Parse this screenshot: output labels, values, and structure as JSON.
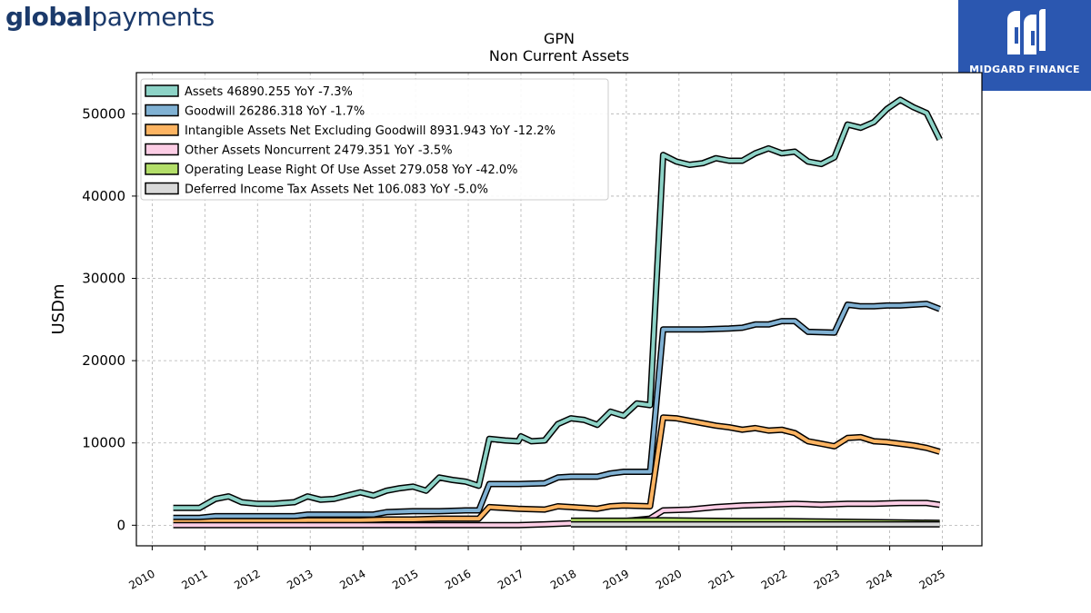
{
  "header": {
    "brand_bold": "global",
    "brand_regular": "payments",
    "partner_logo_text": "MIDGARD FINANCE"
  },
  "chart_data": {
    "type": "line",
    "title": "GPN",
    "subtitle": "Non Current  Assets",
    "ylabel": "USDm",
    "xlabel": "",
    "ylim": [
      -2500,
      55000
    ],
    "xlim": [
      2009.7,
      2025.75
    ],
    "yticks": [
      0,
      10000,
      20000,
      30000,
      40000,
      50000
    ],
    "xticks": [
      2010,
      2011,
      2012,
      2013,
      2014,
      2015,
      2016,
      2017,
      2018,
      2019,
      2020,
      2021,
      2022,
      2023,
      2024,
      2025
    ],
    "grid": true,
    "legend_position": "top-left",
    "series": [
      {
        "name": "Assets",
        "legend_label": "Assets  46890.255 YoY -7.3%",
        "color": "#8dd3c7",
        "points": [
          [
            2010.4,
            2100
          ],
          [
            2010.6,
            2100
          ],
          [
            2010.9,
            2100
          ],
          [
            2011.2,
            3200
          ],
          [
            2011.45,
            3500
          ],
          [
            2011.7,
            2800
          ],
          [
            2012.0,
            2600
          ],
          [
            2012.3,
            2600
          ],
          [
            2012.7,
            2800
          ],
          [
            2012.95,
            3500
          ],
          [
            2013.2,
            3100
          ],
          [
            2013.45,
            3200
          ],
          [
            2013.7,
            3600
          ],
          [
            2013.95,
            4000
          ],
          [
            2014.2,
            3600
          ],
          [
            2014.45,
            4200
          ],
          [
            2014.7,
            4500
          ],
          [
            2014.95,
            4700
          ],
          [
            2015.2,
            4200
          ],
          [
            2015.45,
            5800
          ],
          [
            2015.7,
            5500
          ],
          [
            2015.95,
            5300
          ],
          [
            2016.2,
            4800
          ],
          [
            2016.4,
            10500
          ],
          [
            2016.7,
            10300
          ],
          [
            2016.95,
            10200
          ],
          [
            2017.0,
            10800
          ],
          [
            2017.2,
            10200
          ],
          [
            2017.45,
            10300
          ],
          [
            2017.7,
            12300
          ],
          [
            2017.95,
            13000
          ],
          [
            2018.2,
            12800
          ],
          [
            2018.45,
            12200
          ],
          [
            2018.7,
            13800
          ],
          [
            2018.95,
            13300
          ],
          [
            2019.2,
            14800
          ],
          [
            2019.45,
            14600
          ],
          [
            2019.7,
            45000
          ],
          [
            2019.95,
            44200
          ],
          [
            2020.2,
            43800
          ],
          [
            2020.45,
            44000
          ],
          [
            2020.7,
            44600
          ],
          [
            2020.95,
            44300
          ],
          [
            2021.2,
            44300
          ],
          [
            2021.45,
            45200
          ],
          [
            2021.7,
            45800
          ],
          [
            2021.95,
            45200
          ],
          [
            2022.2,
            45400
          ],
          [
            2022.45,
            44200
          ],
          [
            2022.7,
            43900
          ],
          [
            2022.95,
            44700
          ],
          [
            2023.2,
            48700
          ],
          [
            2023.45,
            48300
          ],
          [
            2023.7,
            49000
          ],
          [
            2023.95,
            50600
          ],
          [
            2024.2,
            51700
          ],
          [
            2024.45,
            50800
          ],
          [
            2024.7,
            50100
          ],
          [
            2024.95,
            46890
          ]
        ]
      },
      {
        "name": "Goodwill",
        "legend_label": "Goodwill  26286.318 YoY -1.7%",
        "color": "#80b1d3",
        "points": [
          [
            2010.4,
            900
          ],
          [
            2010.9,
            900
          ],
          [
            2011.2,
            1100
          ],
          [
            2011.7,
            1100
          ],
          [
            2012.2,
            1100
          ],
          [
            2012.7,
            1100
          ],
          [
            2012.95,
            1300
          ],
          [
            2013.45,
            1300
          ],
          [
            2013.95,
            1300
          ],
          [
            2014.2,
            1300
          ],
          [
            2014.45,
            1600
          ],
          [
            2014.95,
            1700
          ],
          [
            2015.45,
            1700
          ],
          [
            2015.95,
            1800
          ],
          [
            2016.2,
            1800
          ],
          [
            2016.4,
            5000
          ],
          [
            2016.95,
            5000
          ],
          [
            2017.45,
            5100
          ],
          [
            2017.7,
            5800
          ],
          [
            2017.95,
            5900
          ],
          [
            2018.45,
            5900
          ],
          [
            2018.7,
            6300
          ],
          [
            2018.95,
            6500
          ],
          [
            2019.45,
            6500
          ],
          [
            2019.7,
            23800
          ],
          [
            2019.95,
            23800
          ],
          [
            2020.45,
            23800
          ],
          [
            2020.95,
            23900
          ],
          [
            2021.2,
            24000
          ],
          [
            2021.45,
            24400
          ],
          [
            2021.7,
            24400
          ],
          [
            2021.95,
            24800
          ],
          [
            2022.2,
            24800
          ],
          [
            2022.45,
            23500
          ],
          [
            2022.95,
            23400
          ],
          [
            2023.2,
            26800
          ],
          [
            2023.45,
            26600
          ],
          [
            2023.7,
            26600
          ],
          [
            2023.95,
            26700
          ],
          [
            2024.2,
            26700
          ],
          [
            2024.45,
            26800
          ],
          [
            2024.7,
            26900
          ],
          [
            2024.95,
            26286
          ]
        ]
      },
      {
        "name": "Intangible Assets Net Excluding Goodwill",
        "legend_label": "Intangible Assets Net Excluding Goodwill  8931.943 YoY -12.2%",
        "color": "#fdb462",
        "points": [
          [
            2010.4,
            400
          ],
          [
            2010.9,
            400
          ],
          [
            2011.2,
            500
          ],
          [
            2012.0,
            500
          ],
          [
            2012.7,
            500
          ],
          [
            2012.95,
            600
          ],
          [
            2013.95,
            600
          ],
          [
            2014.45,
            700
          ],
          [
            2014.95,
            700
          ],
          [
            2015.45,
            800
          ],
          [
            2016.2,
            800
          ],
          [
            2016.4,
            2200
          ],
          [
            2016.95,
            2000
          ],
          [
            2017.45,
            1900
          ],
          [
            2017.7,
            2300
          ],
          [
            2018.2,
            2100
          ],
          [
            2018.45,
            2000
          ],
          [
            2018.7,
            2300
          ],
          [
            2018.95,
            2400
          ],
          [
            2019.45,
            2300
          ],
          [
            2019.7,
            13100
          ],
          [
            2019.95,
            13000
          ],
          [
            2020.2,
            12700
          ],
          [
            2020.45,
            12400
          ],
          [
            2020.7,
            12100
          ],
          [
            2020.95,
            11900
          ],
          [
            2021.2,
            11600
          ],
          [
            2021.45,
            11800
          ],
          [
            2021.7,
            11500
          ],
          [
            2021.95,
            11600
          ],
          [
            2022.2,
            11200
          ],
          [
            2022.45,
            10200
          ],
          [
            2022.7,
            9900
          ],
          [
            2022.95,
            9600
          ],
          [
            2023.2,
            10600
          ],
          [
            2023.45,
            10700
          ],
          [
            2023.7,
            10200
          ],
          [
            2023.95,
            10100
          ],
          [
            2024.2,
            9900
          ],
          [
            2024.45,
            9700
          ],
          [
            2024.7,
            9400
          ],
          [
            2024.95,
            8932
          ]
        ]
      },
      {
        "name": "Other Assets Noncurrent",
        "legend_label": "Other Assets Noncurrent  2479.351 YoY -3.5%",
        "color": "#fccde5",
        "points": [
          [
            2010.4,
            0
          ],
          [
            2016.95,
            0
          ],
          [
            2017.45,
            100
          ],
          [
            2018.2,
            300
          ],
          [
            2018.95,
            500
          ],
          [
            2019.45,
            800
          ],
          [
            2019.7,
            1800
          ],
          [
            2020.2,
            1900
          ],
          [
            2020.7,
            2200
          ],
          [
            2021.2,
            2400
          ],
          [
            2021.7,
            2500
          ],
          [
            2022.2,
            2600
          ],
          [
            2022.7,
            2500
          ],
          [
            2023.2,
            2600
          ],
          [
            2023.7,
            2600
          ],
          [
            2024.2,
            2700
          ],
          [
            2024.7,
            2700
          ],
          [
            2024.95,
            2479
          ]
        ]
      },
      {
        "name": "Operating Lease Right Of Use Asset",
        "legend_label": "Operating Lease Right Of Use Asset  279.058 YoY -42.0%",
        "color": "#b3de69",
        "points": [
          [
            2017.95,
            550
          ],
          [
            2018.95,
            550
          ],
          [
            2019.7,
            600
          ],
          [
            2020.45,
            550
          ],
          [
            2021.2,
            500
          ],
          [
            2021.95,
            500
          ],
          [
            2022.7,
            450
          ],
          [
            2023.45,
            400
          ],
          [
            2024.2,
            350
          ],
          [
            2024.95,
            279
          ]
        ]
      },
      {
        "name": "Deferred Income Tax Assets Net",
        "legend_label": "Deferred Income Tax Assets Net  106.083 YoY -5.0%",
        "color": "#d9d9d9",
        "points": [
          [
            2017.95,
            100
          ],
          [
            2018.95,
            100
          ],
          [
            2019.7,
            110
          ],
          [
            2020.45,
            100
          ],
          [
            2021.2,
            100
          ],
          [
            2021.95,
            110
          ],
          [
            2022.7,
            100
          ],
          [
            2023.45,
            110
          ],
          [
            2024.2,
            110
          ],
          [
            2024.95,
            106
          ]
        ]
      }
    ]
  }
}
